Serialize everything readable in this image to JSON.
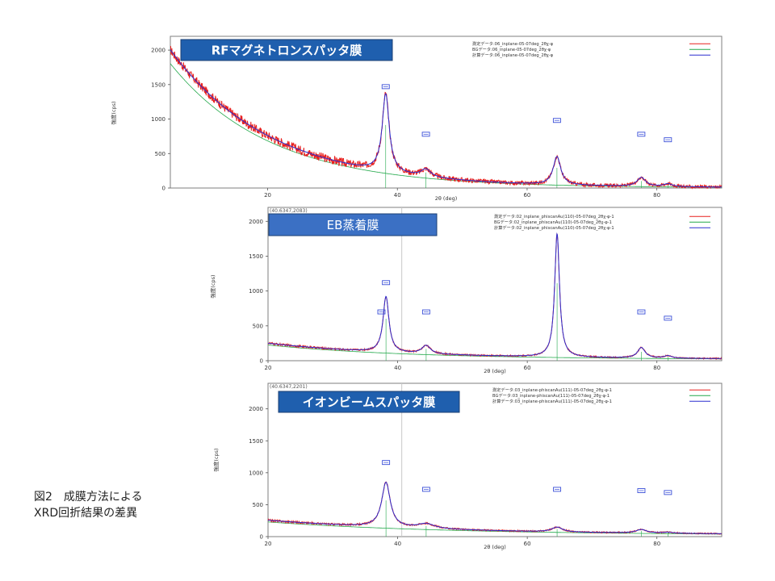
{
  "figure_caption": {
    "line1": "図2　成膜方法による",
    "line2": "XRD回折結果の差異"
  },
  "colors": {
    "measured": "#e8211f",
    "background": "#22a84a",
    "calculated": "#2b2fcf",
    "peak_marker": "#3a4fd8",
    "label_fill_rf": "#1f5fae",
    "label_fill_eb": "#3b70c4",
    "label_fill_ib": "#1f5fae",
    "frame": "#7f7f7f"
  },
  "chart_data": [
    {
      "type": "line",
      "label_box": "RFマグネトロンスパッタ膜",
      "coordinate_readout": "",
      "xlabel": "2θ (deg)",
      "ylabel": "強度(cps)",
      "x_ticks": [
        "20",
        "40",
        "60",
        "80"
      ],
      "y_ticks": [
        "0",
        "500",
        "1000",
        "1500",
        "2000"
      ],
      "xlim": [
        5,
        90
      ],
      "ylim": [
        0,
        2200
      ],
      "legend": [
        "測定データ:06_inplane-05-07deg_2θχ-φ",
        "BGデータ:06_inplane-05-07deg_2θχ-φ",
        "計算データ:06_inplane-05-07deg_2θχ-φ"
      ],
      "legend_position": "top-right",
      "background_curve": {
        "a": 2000,
        "k": 0.065,
        "c": 5,
        "x0": 5
      },
      "peaks": [
        {
          "x": 38.2,
          "height": 1130,
          "width": 0.65
        },
        {
          "x": 44.4,
          "height": 110,
          "width": 0.9
        },
        {
          "x": 64.6,
          "height": 410,
          "width": 0.7
        },
        {
          "x": 77.6,
          "height": 130,
          "width": 0.8
        },
        {
          "x": 81.7,
          "height": 40,
          "width": 0.8
        }
      ],
      "markers": [
        {
          "x": 38.2,
          "y": 1470
        },
        {
          "x": 44.4,
          "y": 780
        },
        {
          "x": 64.6,
          "y": 980
        },
        {
          "x": 77.6,
          "y": 780
        },
        {
          "x": 81.7,
          "y": 700
        }
      ],
      "noise": 65
    },
    {
      "type": "line",
      "label_box": "EB蒸着膜",
      "coordinate_readout": "(40.6347,2083)",
      "xlabel": "2θ (deg)",
      "ylabel": "強度(cps)",
      "x_ticks": [
        "20",
        "40",
        "60",
        "80"
      ],
      "y_ticks": [
        "0",
        "500",
        "1000",
        "1500",
        "2000"
      ],
      "xlim": [
        20,
        90
      ],
      "ylim": [
        0,
        2200
      ],
      "legend": [
        "測定データ:02_inplane_phiscanAu(110)-05-07deg_2θχ-φ-1",
        "BGデータ:02_inplane_phiscanAu(110)-05-07deg_2θχ-φ-1",
        "計算データ:02_inplane_phiscanAu(110)-05-07deg_2θχ-φ-1"
      ],
      "legend_position": "top-right",
      "background_curve": {
        "a": 230,
        "k": 0.045,
        "c": 20,
        "x0": 20
      },
      "peaks": [
        {
          "x": 38.2,
          "height": 800,
          "width": 0.55
        },
        {
          "x": 44.4,
          "height": 120,
          "width": 0.8
        },
        {
          "x": 64.6,
          "height": 1770,
          "width": 0.45
        },
        {
          "x": 77.6,
          "height": 150,
          "width": 0.7
        },
        {
          "x": 81.7,
          "height": 35,
          "width": 0.7
        }
      ],
      "markers": [
        {
          "x": 38.2,
          "y": 1120
        },
        {
          "x": 37.5,
          "y": 700
        },
        {
          "x": 44.4,
          "y": 700
        },
        {
          "x": 77.6,
          "y": 700
        },
        {
          "x": 81.7,
          "y": 610
        }
      ],
      "noise": 22
    },
    {
      "type": "line",
      "label_box": "イオンビームスパッタ膜",
      "coordinate_readout": "(40.6347,2201)",
      "xlabel": "2θ (deg)",
      "ylabel": "強度(cps)",
      "x_ticks": [
        "20",
        "40",
        "60",
        "80"
      ],
      "y_ticks": [
        "0",
        "500",
        "1000",
        "1500",
        "2000"
      ],
      "xlim": [
        20,
        90
      ],
      "ylim": [
        0,
        2400
      ],
      "legend": [
        "測定データ:03_inplane-phiscanAu(111)-05-07deg_2θχ-φ-1",
        "BGデータ:03_inplane-phiscanAu(111)-05-07deg_2θχ-φ-1",
        "計算データ:03_inplane-phiscanAu(111)-05-07deg_2θχ-φ-1"
      ],
      "legend_position": "top-right",
      "background_curve": {
        "a": 230,
        "k": 0.035,
        "c": 25,
        "x0": 20
      },
      "peaks": [
        {
          "x": 38.2,
          "height": 700,
          "width": 0.8
        },
        {
          "x": 44.4,
          "height": 75,
          "width": 1.6
        },
        {
          "x": 64.6,
          "height": 75,
          "width": 1.0
        },
        {
          "x": 77.6,
          "height": 55,
          "width": 1.0
        },
        {
          "x": 81.7,
          "height": 15,
          "width": 1.0
        }
      ],
      "markers": [
        {
          "x": 38.2,
          "y": 1160
        },
        {
          "x": 44.4,
          "y": 740
        },
        {
          "x": 64.6,
          "y": 740
        },
        {
          "x": 77.6,
          "y": 720
        },
        {
          "x": 81.7,
          "y": 690
        }
      ],
      "noise": 22
    }
  ]
}
